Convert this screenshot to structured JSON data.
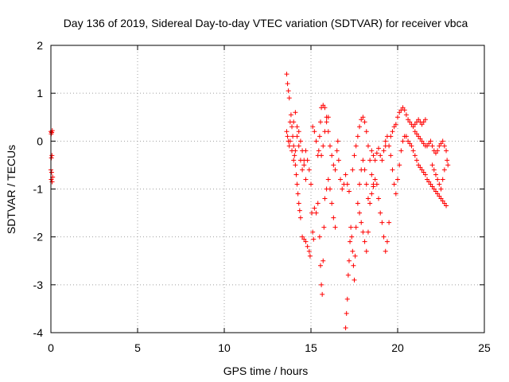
{
  "chart_data": {
    "type": "scatter",
    "title": "Day 136 of 2019, Sidereal Day-to-day VTEC variation (SDTVAR) for receiver vbca",
    "xlabel": "GPS time / hours",
    "ylabel": "SDTVAR / TECUs",
    "xlim": [
      0,
      25
    ],
    "ylim": [
      -4,
      2
    ],
    "xticks": [
      0,
      5,
      10,
      15,
      20,
      25
    ],
    "yticks": [
      -4,
      -3,
      -2,
      -1,
      0,
      1,
      2
    ],
    "grid": true,
    "marker": "plus",
    "color": "#ff0000",
    "series": [
      {
        "name": "SDTVAR",
        "points": [
          [
            0.0,
            0.2
          ],
          [
            0.02,
            0.15
          ],
          [
            0.05,
            0.18
          ],
          [
            0.08,
            0.22
          ],
          [
            0.03,
            -0.35
          ],
          [
            0.06,
            -0.3
          ],
          [
            0.0,
            -0.6
          ],
          [
            0.04,
            -0.65
          ],
          [
            0.02,
            -0.8
          ],
          [
            0.07,
            -0.85
          ],
          [
            0.1,
            -0.75
          ],
          [
            13.6,
            1.4
          ],
          [
            13.65,
            1.2
          ],
          [
            13.7,
            1.05
          ],
          [
            13.75,
            0.9
          ],
          [
            13.6,
            0.2
          ],
          [
            13.65,
            0.1
          ],
          [
            13.7,
            0.0
          ],
          [
            13.75,
            -0.1
          ],
          [
            13.8,
            0.4
          ],
          [
            13.85,
            0.55
          ],
          [
            13.9,
            0.3
          ],
          [
            13.95,
            0.1
          ],
          [
            14.0,
            -0.1
          ],
          [
            14.05,
            -0.3
          ],
          [
            14.1,
            -0.5
          ],
          [
            14.15,
            -0.7
          ],
          [
            14.2,
            -0.9
          ],
          [
            14.25,
            -1.1
          ],
          [
            14.3,
            -1.3
          ],
          [
            14.35,
            -1.45
          ],
          [
            14.4,
            -1.6
          ],
          [
            13.8,
            0.0
          ],
          [
            13.9,
            -0.2
          ],
          [
            14.0,
            -0.4
          ],
          [
            14.1,
            -0.2
          ],
          [
            14.2,
            0.1
          ],
          [
            14.3,
            0.2
          ],
          [
            14.4,
            0.0
          ],
          [
            14.5,
            -0.2
          ],
          [
            14.6,
            -0.5
          ],
          [
            14.7,
            -0.8
          ],
          [
            14.0,
            0.4
          ],
          [
            14.1,
            0.6
          ],
          [
            14.2,
            0.3
          ],
          [
            14.3,
            -0.1
          ],
          [
            14.4,
            -0.4
          ],
          [
            14.5,
            -0.6
          ],
          [
            14.6,
            -0.4
          ],
          [
            14.7,
            -0.2
          ],
          [
            14.5,
            -2.0
          ],
          [
            14.6,
            -2.05
          ],
          [
            14.7,
            -2.1
          ],
          [
            14.8,
            -2.2
          ],
          [
            14.9,
            -2.3
          ],
          [
            14.95,
            -2.4
          ],
          [
            14.8,
            -0.4
          ],
          [
            14.9,
            -0.6
          ],
          [
            15.0,
            -0.9
          ],
          [
            15.05,
            -1.5
          ],
          [
            15.1,
            -1.9
          ],
          [
            15.15,
            -2.05
          ],
          [
            15.2,
            -1.4
          ],
          [
            15.1,
            0.3
          ],
          [
            15.2,
            0.2
          ],
          [
            15.3,
            0.0
          ],
          [
            15.4,
            -0.3
          ],
          [
            15.45,
            -0.2
          ],
          [
            15.5,
            0.1
          ],
          [
            15.55,
            0.4
          ],
          [
            15.6,
            0.7
          ],
          [
            15.7,
            0.75
          ],
          [
            15.8,
            0.7
          ],
          [
            15.9,
            0.5
          ],
          [
            16.0,
            0.2
          ],
          [
            16.1,
            -0.1
          ],
          [
            16.2,
            -0.3
          ],
          [
            16.3,
            -0.5
          ],
          [
            16.4,
            -0.6
          ],
          [
            15.3,
            -1.5
          ],
          [
            15.4,
            -1.3
          ],
          [
            15.5,
            -2.0
          ],
          [
            15.55,
            -2.6
          ],
          [
            15.6,
            -3.0
          ],
          [
            15.65,
            -3.2
          ],
          [
            15.7,
            -2.5
          ],
          [
            15.75,
            -1.8
          ],
          [
            15.8,
            -1.2
          ],
          [
            15.9,
            -1.0
          ],
          [
            16.0,
            -0.8
          ],
          [
            16.1,
            -1.0
          ],
          [
            16.2,
            -1.3
          ],
          [
            16.3,
            -1.6
          ],
          [
            16.4,
            -1.8
          ],
          [
            15.6,
            -0.3
          ],
          [
            15.7,
            -0.1
          ],
          [
            15.8,
            0.2
          ],
          [
            15.9,
            0.4
          ],
          [
            16.0,
            0.5
          ],
          [
            16.5,
            -0.2
          ],
          [
            16.55,
            0.0
          ],
          [
            16.6,
            -0.4
          ],
          [
            16.7,
            -0.8
          ],
          [
            16.8,
            -1.0
          ],
          [
            16.9,
            -0.9
          ],
          [
            17.0,
            -0.7
          ],
          [
            17.1,
            -0.9
          ],
          [
            17.2,
            -1.05
          ],
          [
            17.0,
            -3.9
          ],
          [
            17.05,
            -3.6
          ],
          [
            17.1,
            -3.3
          ],
          [
            17.15,
            -2.8
          ],
          [
            17.2,
            -2.5
          ],
          [
            17.25,
            -2.1
          ],
          [
            17.3,
            -1.8
          ],
          [
            17.35,
            -2.0
          ],
          [
            17.4,
            -2.3
          ],
          [
            17.45,
            -2.6
          ],
          [
            17.5,
            -2.9
          ],
          [
            17.55,
            -2.4
          ],
          [
            17.6,
            -1.8
          ],
          [
            17.4,
            -0.6
          ],
          [
            17.5,
            -0.3
          ],
          [
            17.6,
            -0.1
          ],
          [
            17.7,
            0.1
          ],
          [
            17.8,
            0.3
          ],
          [
            17.9,
            0.45
          ],
          [
            18.0,
            0.5
          ],
          [
            18.1,
            0.4
          ],
          [
            18.2,
            0.2
          ],
          [
            18.3,
            -0.1
          ],
          [
            18.4,
            -0.4
          ],
          [
            18.5,
            -0.7
          ],
          [
            18.6,
            -0.95
          ],
          [
            17.8,
            -0.9
          ],
          [
            17.9,
            -0.6
          ],
          [
            18.0,
            -0.4
          ],
          [
            18.1,
            -0.6
          ],
          [
            18.2,
            -0.9
          ],
          [
            18.3,
            -1.2
          ],
          [
            18.4,
            -1.3
          ],
          [
            18.5,
            -1.1
          ],
          [
            18.6,
            -0.9
          ],
          [
            18.7,
            -0.8
          ],
          [
            17.7,
            -1.3
          ],
          [
            17.8,
            -1.5
          ],
          [
            17.9,
            -1.7
          ],
          [
            18.0,
            -1.9
          ],
          [
            18.1,
            -2.1
          ],
          [
            18.2,
            -2.3
          ],
          [
            18.3,
            -1.9
          ],
          [
            18.5,
            -0.2
          ],
          [
            18.6,
            -0.3
          ],
          [
            18.7,
            -0.4
          ],
          [
            18.8,
            -0.25
          ],
          [
            18.9,
            -0.15
          ],
          [
            19.0,
            -0.3
          ],
          [
            19.1,
            -0.4
          ],
          [
            19.2,
            -0.2
          ],
          [
            19.3,
            -0.1
          ],
          [
            18.8,
            -0.9
          ],
          [
            18.9,
            -1.2
          ],
          [
            19.0,
            -1.5
          ],
          [
            19.1,
            -1.7
          ],
          [
            19.2,
            -2.0
          ],
          [
            19.3,
            -2.3
          ],
          [
            19.4,
            -2.1
          ],
          [
            19.5,
            -1.7
          ],
          [
            19.3,
            0.0
          ],
          [
            19.4,
            0.1
          ],
          [
            19.5,
            -0.1
          ],
          [
            19.6,
            -0.3
          ],
          [
            19.7,
            -0.6
          ],
          [
            19.8,
            -0.9
          ],
          [
            19.9,
            -1.1
          ],
          [
            20.0,
            -0.8
          ],
          [
            20.1,
            -0.5
          ],
          [
            20.2,
            -0.2
          ],
          [
            20.3,
            0.0
          ],
          [
            20.4,
            0.1
          ],
          [
            19.6,
            0.1
          ],
          [
            19.7,
            0.2
          ],
          [
            19.8,
            0.3
          ],
          [
            19.9,
            0.35
          ],
          [
            20.0,
            0.5
          ],
          [
            20.1,
            0.6
          ],
          [
            20.2,
            0.65
          ],
          [
            20.3,
            0.7
          ],
          [
            20.4,
            0.65
          ],
          [
            20.5,
            0.55
          ],
          [
            20.6,
            0.45
          ],
          [
            20.7,
            0.4
          ],
          [
            20.8,
            0.35
          ],
          [
            20.9,
            0.3
          ],
          [
            21.0,
            0.35
          ],
          [
            21.1,
            0.4
          ],
          [
            21.2,
            0.45
          ],
          [
            21.3,
            0.4
          ],
          [
            21.4,
            0.35
          ],
          [
            21.5,
            0.4
          ],
          [
            21.6,
            0.45
          ],
          [
            20.5,
            0.1
          ],
          [
            20.6,
            0.0
          ],
          [
            20.7,
            -0.05
          ],
          [
            20.8,
            -0.1
          ],
          [
            20.9,
            -0.2
          ],
          [
            21.0,
            -0.3
          ],
          [
            21.1,
            -0.4
          ],
          [
            21.2,
            -0.5
          ],
          [
            21.3,
            -0.55
          ],
          [
            21.4,
            -0.6
          ],
          [
            21.5,
            -0.65
          ],
          [
            21.6,
            -0.7
          ],
          [
            21.7,
            -0.8
          ],
          [
            21.8,
            -0.85
          ],
          [
            21.9,
            -0.9
          ],
          [
            22.0,
            -0.95
          ],
          [
            22.1,
            -1.0
          ],
          [
            22.2,
            -1.05
          ],
          [
            22.3,
            -1.1
          ],
          [
            22.4,
            -1.15
          ],
          [
            22.5,
            -1.2
          ],
          [
            22.6,
            -1.25
          ],
          [
            22.7,
            -1.3
          ],
          [
            22.8,
            -1.35
          ],
          [
            21.0,
            0.2
          ],
          [
            21.1,
            0.15
          ],
          [
            21.2,
            0.1
          ],
          [
            21.3,
            0.05
          ],
          [
            21.4,
            0.0
          ],
          [
            21.5,
            -0.05
          ],
          [
            21.6,
            -0.1
          ],
          [
            21.7,
            -0.1
          ],
          [
            21.8,
            -0.05
          ],
          [
            21.9,
            0.0
          ],
          [
            22.0,
            -0.1
          ],
          [
            22.1,
            -0.2
          ],
          [
            22.2,
            -0.25
          ],
          [
            22.3,
            -0.2
          ],
          [
            22.4,
            -0.1
          ],
          [
            22.5,
            -0.05
          ],
          [
            22.6,
            0.0
          ],
          [
            22.7,
            -0.1
          ],
          [
            22.8,
            -0.2
          ],
          [
            22.85,
            -0.4
          ],
          [
            22.9,
            -0.5
          ],
          [
            22.0,
            -0.5
          ],
          [
            22.1,
            -0.6
          ],
          [
            22.2,
            -0.7
          ],
          [
            22.3,
            -0.8
          ],
          [
            22.4,
            -0.9
          ],
          [
            22.5,
            -1.0
          ],
          [
            22.6,
            -0.8
          ],
          [
            22.7,
            -0.6
          ]
        ]
      }
    ]
  }
}
